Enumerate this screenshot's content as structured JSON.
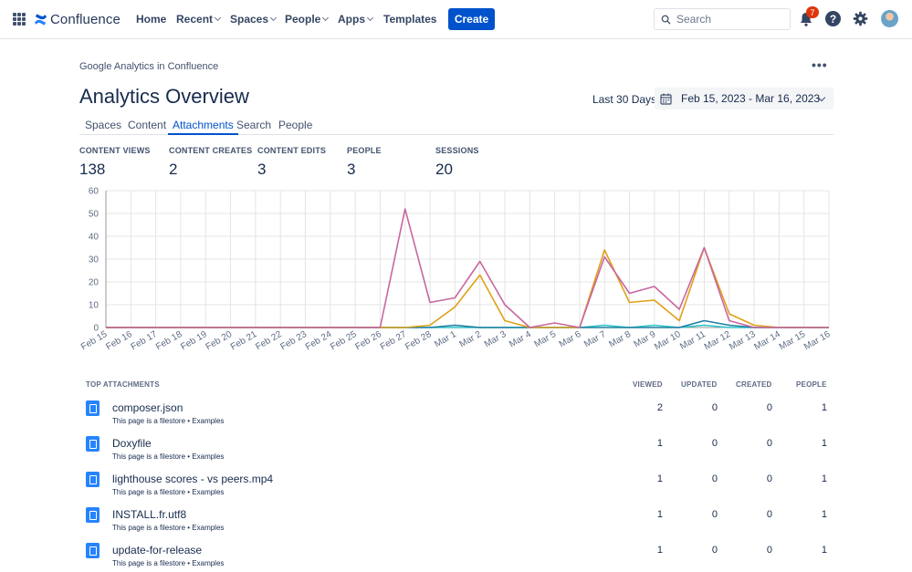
{
  "nav": {
    "brand": "Confluence",
    "items": [
      {
        "label": "Home",
        "dropdown": false
      },
      {
        "label": "Recent",
        "dropdown": true
      },
      {
        "label": "Spaces",
        "dropdown": true
      },
      {
        "label": "People",
        "dropdown": true
      },
      {
        "label": "Apps",
        "dropdown": true
      },
      {
        "label": "Templates",
        "dropdown": false
      }
    ],
    "create_label": "Create",
    "search_placeholder": "Search",
    "notification_count": "7",
    "help_label": "?"
  },
  "page": {
    "breadcrumb": "Google Analytics in Confluence",
    "title": "Analytics Overview",
    "range_label": "Last 30 Days",
    "date_range": "Feb 15, 2023 - Mar 16, 2023"
  },
  "tabs": [
    {
      "label": "Spaces",
      "active": false
    },
    {
      "label": "Content",
      "active": false
    },
    {
      "label": "Attachments",
      "active": true
    },
    {
      "label": "Search",
      "active": false
    },
    {
      "label": "People",
      "active": false
    }
  ],
  "metrics": [
    {
      "label": "CONTENT VIEWS",
      "value": "138"
    },
    {
      "label": "CONTENT CREATES",
      "value": "2"
    },
    {
      "label": "CONTENT EDITS",
      "value": "3"
    },
    {
      "label": "PEOPLE",
      "value": "3"
    },
    {
      "label": "SESSIONS",
      "value": "20"
    }
  ],
  "chart_data": {
    "type": "line",
    "x": [
      "Feb 15",
      "Feb 16",
      "Feb 17",
      "Feb 18",
      "Feb 19",
      "Feb 20",
      "Feb 21",
      "Feb 22",
      "Feb 23",
      "Feb 24",
      "Feb 25",
      "Feb 26",
      "Feb 27",
      "Feb 28",
      "Mar 1",
      "Mar 2",
      "Mar 3",
      "Mar 4",
      "Mar 5",
      "Mar 6",
      "Mar 7",
      "Mar 8",
      "Mar 9",
      "Mar 10",
      "Mar 11",
      "Mar 12",
      "Mar 13",
      "Mar 14",
      "Mar 15",
      "Mar 16"
    ],
    "yticks": [
      0,
      10,
      20,
      30,
      40,
      50,
      60
    ],
    "ylim": [
      0,
      60
    ],
    "grid": true,
    "series": [
      {
        "color": "#C8679F",
        "values": [
          0,
          0,
          0,
          0,
          0,
          0,
          0,
          0,
          0,
          0,
          0,
          0,
          52,
          11,
          13,
          29,
          10,
          0,
          2,
          0,
          31,
          15,
          18,
          8,
          35,
          3,
          0,
          0,
          0,
          0
        ]
      },
      {
        "color": "#E0A018",
        "values": [
          0,
          0,
          0,
          0,
          0,
          0,
          0,
          0,
          0,
          0,
          0,
          0,
          0,
          1,
          9,
          23,
          3,
          0,
          0,
          0,
          34,
          11,
          12,
          3,
          35,
          6,
          1,
          0,
          0,
          0
        ]
      },
      {
        "color": "#1F7FA0",
        "values": [
          0,
          0,
          0,
          0,
          0,
          0,
          0,
          0,
          0,
          0,
          0,
          0,
          0,
          0,
          1,
          0,
          0,
          0,
          0,
          0,
          0,
          0,
          0,
          0,
          3,
          1,
          0,
          0,
          0,
          0
        ]
      },
      {
        "color": "#2EC4C9",
        "values": [
          0,
          0,
          0,
          0,
          0,
          0,
          0,
          0,
          0,
          0,
          0,
          0,
          0,
          0,
          0,
          0,
          0,
          0,
          0,
          0,
          1,
          0,
          1,
          0,
          1,
          0,
          0,
          0,
          0,
          0
        ]
      }
    ]
  },
  "table": {
    "headers": {
      "name": "TOP ATTACHMENTS",
      "viewed": "VIEWED",
      "updated": "UPDATED",
      "created": "CREATED",
      "people": "PEOPLE"
    },
    "rows": [
      {
        "name": "composer.json",
        "sub": "This page is a filestore • Examples",
        "viewed": "2",
        "updated": "0",
        "created": "0",
        "people": "1"
      },
      {
        "name": "Doxyfile",
        "sub": "This page is a filestore • Examples",
        "viewed": "1",
        "updated": "0",
        "created": "0",
        "people": "1"
      },
      {
        "name": "lighthouse scores - vs peers.mp4",
        "sub": "This page is a filestore • Examples",
        "viewed": "1",
        "updated": "0",
        "created": "0",
        "people": "1"
      },
      {
        "name": "INSTALL.fr.utf8",
        "sub": "This page is a filestore • Examples",
        "viewed": "1",
        "updated": "0",
        "created": "0",
        "people": "1"
      },
      {
        "name": "update-for-release",
        "sub": "This page is a filestore • Examples",
        "viewed": "1",
        "updated": "0",
        "created": "0",
        "people": "1"
      }
    ]
  }
}
